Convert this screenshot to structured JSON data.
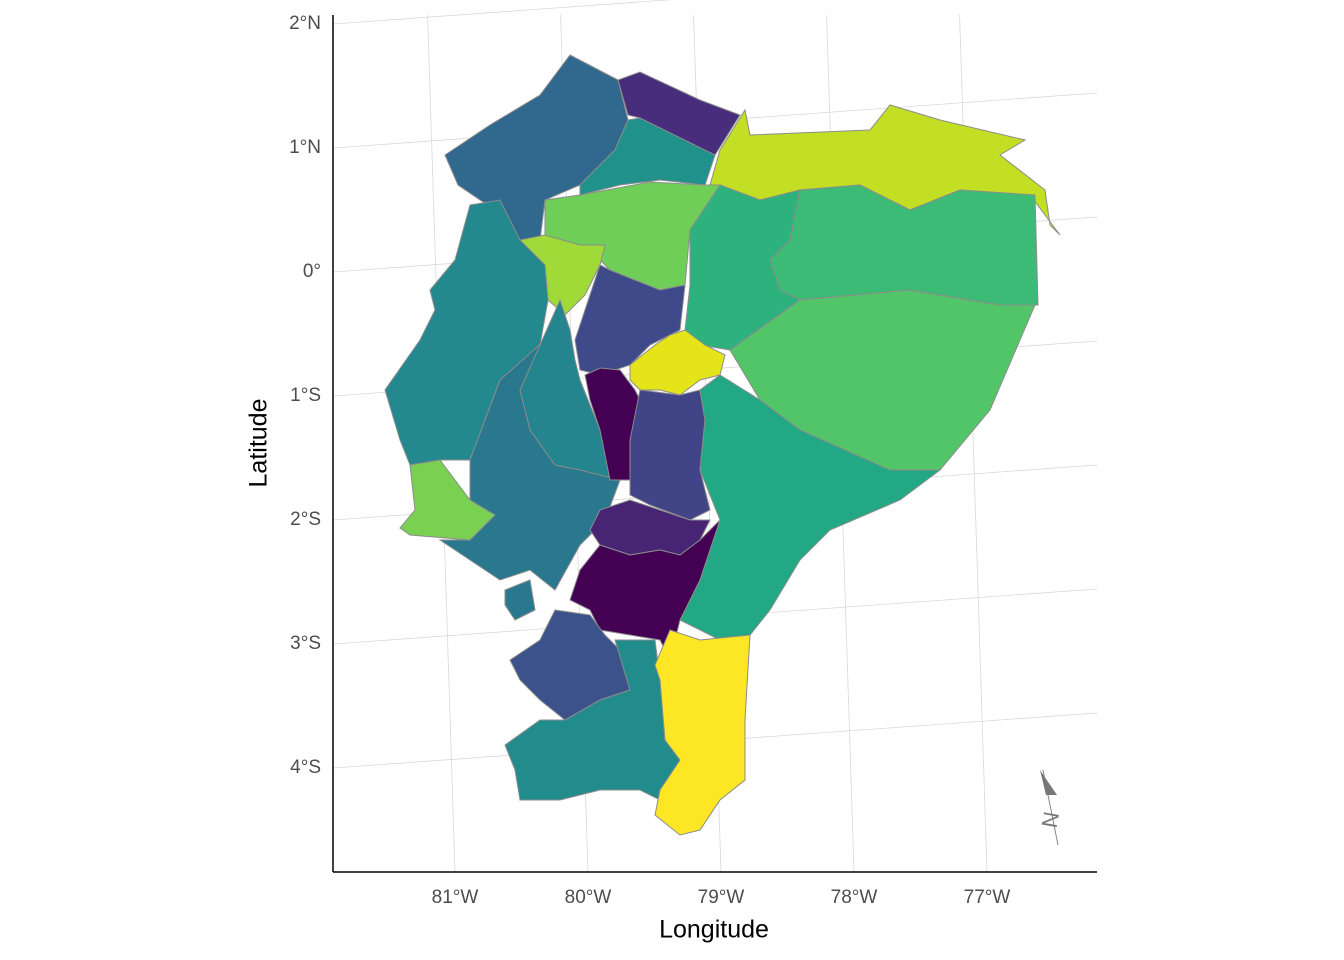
{
  "map": {
    "x_label": "Longitude",
    "y_label": "Latitude",
    "north_label": "N",
    "xticks": [
      {
        "value": -81,
        "label": "81°W"
      },
      {
        "value": -80,
        "label": "80°W"
      },
      {
        "value": -79,
        "label": "79°W"
      },
      {
        "value": -78,
        "label": "78°W"
      },
      {
        "value": -77,
        "label": "77°W"
      }
    ],
    "yticks": [
      {
        "value": 2,
        "label": "2°N"
      },
      {
        "value": 1,
        "label": "1°N"
      },
      {
        "value": 0,
        "label": "0°"
      },
      {
        "value": -1,
        "label": "1°S"
      },
      {
        "value": -2,
        "label": "2°S"
      },
      {
        "value": -3,
        "label": "3°S"
      },
      {
        "value": -4,
        "label": "4°S"
      }
    ]
  }
}
